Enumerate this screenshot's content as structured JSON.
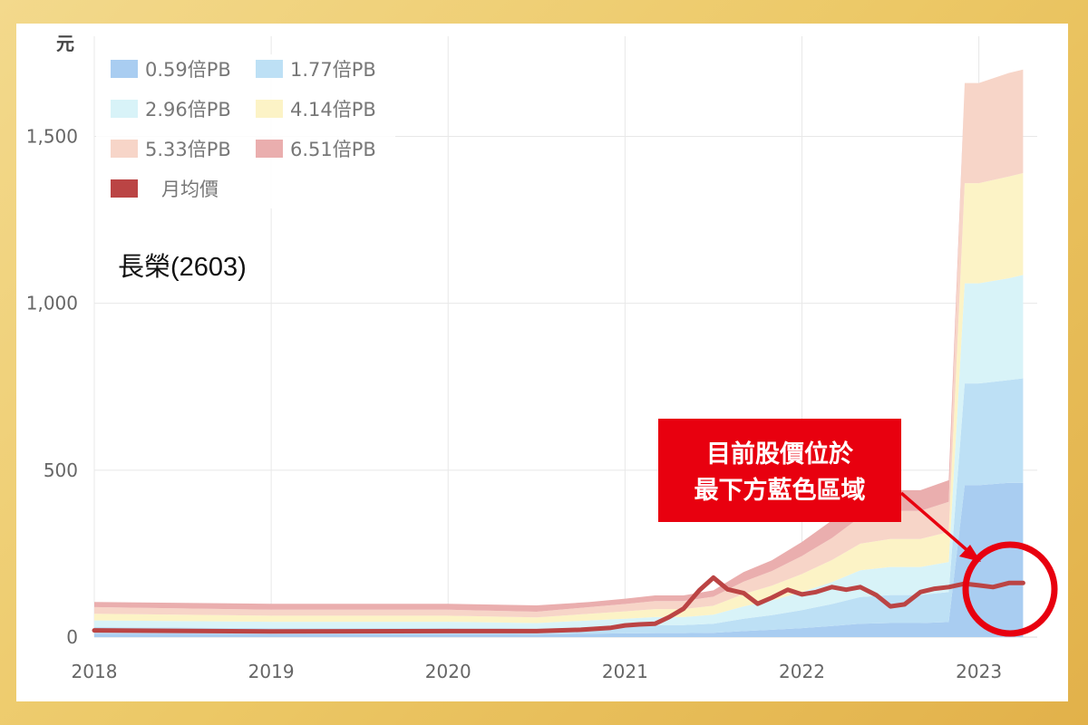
{
  "stock_label": "長榮(2603)",
  "callout": {
    "line1": "目前股價位於",
    "line2": "最下方藍色區域",
    "color": "#e8000f"
  },
  "chart_data": {
    "type": "area",
    "y_unit": "元",
    "xlim": [
      2018,
      2023.33
    ],
    "ylim": [
      0,
      1800
    ],
    "x_ticks": [
      2018,
      2019,
      2020,
      2021,
      2022,
      2023
    ],
    "x_tick_labels": [
      "2018",
      "2019",
      "2020",
      "2021",
      "2022",
      "2023"
    ],
    "y_ticks": [
      0,
      500,
      1000,
      1500
    ],
    "y_tick_labels": [
      "0",
      "500",
      "1,000",
      "1,500"
    ],
    "grid": true,
    "legend_position": "top-left",
    "x": [
      2018.0,
      2019.0,
      2020.0,
      2020.5,
      2020.8,
      2021.0,
      2021.17,
      2021.33,
      2021.5,
      2021.67,
      2021.83,
      2022.0,
      2022.17,
      2022.33,
      2022.5,
      2022.67,
      2022.83,
      2022.92,
      2023.0,
      2023.17,
      2023.25
    ],
    "series": [
      {
        "name": "0.59倍PB",
        "color": "#a9cdf1",
        "values": [
          10,
          9,
          9,
          8,
          10,
          11,
          12,
          12,
          13,
          18,
          22,
          27,
          33,
          40,
          42,
          42,
          45,
          455,
          455,
          462,
          462
        ]
      },
      {
        "name": "1.77倍PB",
        "color": "#bde0f5",
        "values": [
          30,
          27,
          27,
          25,
          30,
          33,
          36,
          36,
          40,
          55,
          66,
          81,
          99,
          120,
          126,
          126,
          135,
          760,
          760,
          770,
          775
        ]
      },
      {
        "name": "2.96倍PB",
        "color": "#d8f3f8",
        "values": [
          50,
          46,
          46,
          42,
          50,
          55,
          60,
          60,
          67,
          92,
          110,
          135,
          165,
          200,
          210,
          210,
          225,
          1060,
          1060,
          1075,
          1085
        ]
      },
      {
        "name": "4.14倍PB",
        "color": "#fcf3c6",
        "values": [
          70,
          64,
          64,
          59,
          70,
          77,
          84,
          84,
          94,
          129,
          154,
          189,
          231,
          280,
          294,
          294,
          315,
          1360,
          1360,
          1380,
          1390
        ]
      },
      {
        "name": "5.33倍PB",
        "color": "#f7d5c8",
        "values": [
          90,
          82,
          82,
          76,
          90,
          99,
          108,
          108,
          121,
          166,
          198,
          243,
          297,
          360,
          378,
          378,
          405,
          1660,
          1660,
          1690,
          1700
        ]
      },
      {
        "name": "6.51倍PB",
        "color": "#eaaeae",
        "values": [
          105,
          100,
          100,
          95,
          105,
          115,
          125,
          125,
          140,
          195,
          230,
          285,
          350,
          420,
          440,
          440,
          470,
          1660,
          1660,
          1690,
          1700
        ]
      },
      {
        "name": "月均價",
        "color": "#bb4444",
        "type": "line",
        "x": [
          2018.0,
          2019.0,
          2020.0,
          2020.5,
          2020.75,
          2020.92,
          2021.0,
          2021.08,
          2021.17,
          2021.25,
          2021.33,
          2021.42,
          2021.5,
          2021.58,
          2021.67,
          2021.75,
          2021.83,
          2021.92,
          2022.0,
          2022.08,
          2022.17,
          2022.25,
          2022.33,
          2022.42,
          2022.5,
          2022.58,
          2022.67,
          2022.75,
          2022.83,
          2022.92,
          2023.0,
          2023.08,
          2023.17,
          2023.25
        ],
        "values": [
          20,
          17,
          18,
          18,
          22,
          28,
          35,
          38,
          40,
          60,
          85,
          140,
          178,
          143,
          132,
          100,
          118,
          142,
          128,
          135,
          150,
          142,
          150,
          126,
          92,
          98,
          135,
          145,
          150,
          160,
          155,
          150,
          162,
          162
        ]
      }
    ]
  }
}
